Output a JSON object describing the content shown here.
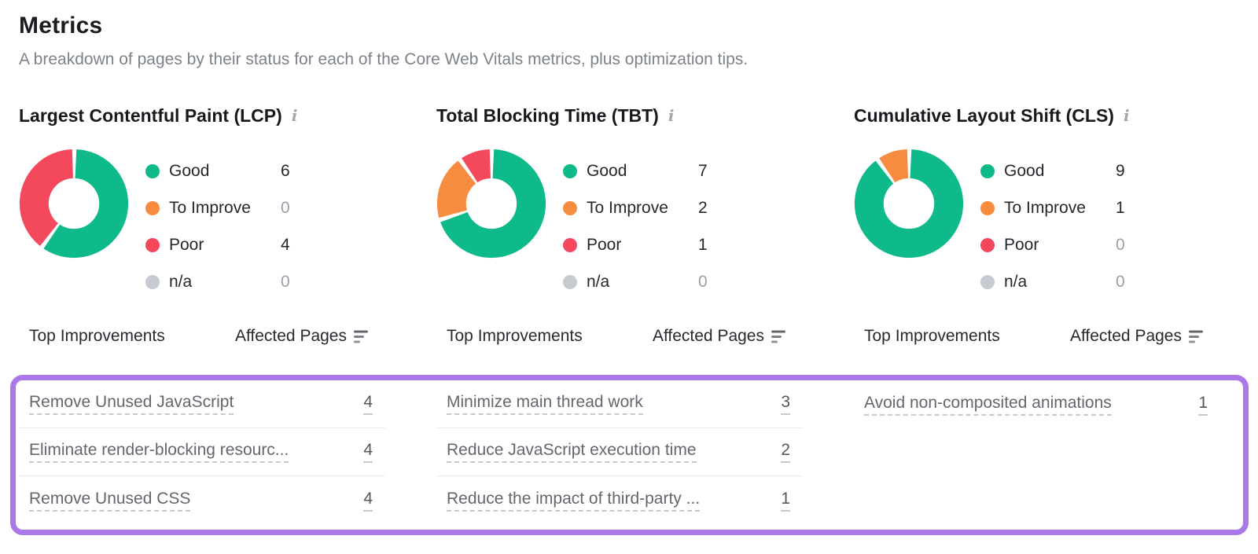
{
  "page": {
    "title": "Metrics",
    "subtitle": "A breakdown of pages by their status for each of the Core Web Vitals metrics, plus optimization tips."
  },
  "icons": {
    "info": "i",
    "sort": "sort-descending"
  },
  "colors": {
    "good": "#0fba8a",
    "to_improve": "#f78c40",
    "poor": "#f4495c",
    "na": "#c7cbd1",
    "highlight_border": "#aa78e8"
  },
  "table_header": {
    "improvements": "Top Improvements",
    "affected": "Affected Pages"
  },
  "chart_data": [
    {
      "type": "donut",
      "title": "Largest Contentful Paint (LCP)",
      "categories": [
        "Good",
        "To Improve",
        "Poor",
        "n/a"
      ],
      "values": [
        6,
        0,
        4,
        0
      ],
      "segment_colors": [
        "#0fba8a",
        "#f78c40",
        "#f4495c",
        "#c7cbd1"
      ],
      "legend_position": "right"
    },
    {
      "type": "donut",
      "title": "Total Blocking Time (TBT)",
      "categories": [
        "Good",
        "To Improve",
        "Poor",
        "n/a"
      ],
      "values": [
        7,
        2,
        1,
        0
      ],
      "segment_colors": [
        "#0fba8a",
        "#f78c40",
        "#f4495c",
        "#c7cbd1"
      ],
      "legend_position": "right"
    },
    {
      "type": "donut",
      "title": "Cumulative Layout Shift (CLS)",
      "categories": [
        "Good",
        "To Improve",
        "Poor",
        "n/a"
      ],
      "values": [
        9,
        1,
        0,
        0
      ],
      "segment_colors": [
        "#0fba8a",
        "#f78c40",
        "#f4495c",
        "#c7cbd1"
      ],
      "legend_position": "right"
    }
  ],
  "improvements": [
    {
      "rows": [
        {
          "label": "Remove Unused JavaScript",
          "pages": "4"
        },
        {
          "label": "Eliminate render-blocking resourc...",
          "pages": "4"
        },
        {
          "label": "Remove Unused CSS",
          "pages": "4"
        }
      ]
    },
    {
      "rows": [
        {
          "label": "Minimize main thread work",
          "pages": "3"
        },
        {
          "label": "Reduce JavaScript execution time",
          "pages": "2"
        },
        {
          "label": "Reduce the impact of third-party ...",
          "pages": "1"
        }
      ]
    },
    {
      "rows": [
        {
          "label": "Avoid non-composited animations",
          "pages": "1"
        }
      ]
    }
  ]
}
